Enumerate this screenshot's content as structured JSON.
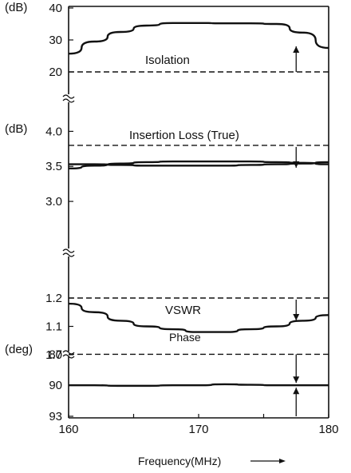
{
  "chart_data": {
    "type": "line",
    "xlabel": "Frequency(MHz)",
    "x_ticks": [
      "160",
      "170",
      "180"
    ],
    "xlim": [
      160,
      180
    ],
    "panels": [
      {
        "name": "isolation",
        "unit_label": "(dB)",
        "ylim": [
          20,
          40
        ],
        "y_ticks": [
          {
            "label": "40",
            "value": 40
          },
          {
            "label": "30",
            "value": 30
          },
          {
            "label": "20",
            "value": 20
          }
        ],
        "annotation": "Isolation",
        "spec": {
          "value": 20,
          "style": "dashed",
          "arrow": "up",
          "arrow_x": 177.5
        },
        "series": [
          {
            "x": [
              160,
              162,
              164,
              166,
              168,
              170,
              172,
              174,
              176,
              178,
              180
            ],
            "values": [
              25.7,
              29.5,
              32.5,
              34.5,
              35.3,
              35.3,
              35.2,
              35.2,
              35.0,
              32.3,
              27.5
            ]
          }
        ]
      },
      {
        "name": "insertion-loss",
        "unit_label": "(dB)",
        "ylim": [
          2.75,
          4.05
        ],
        "y_ticks": [
          {
            "label": "4.0",
            "value": 4.0
          },
          {
            "label": "3.5",
            "value": 3.5
          },
          {
            "label": "3.0",
            "value": 3.0
          }
        ],
        "annotation": "Insertion Loss (True)",
        "spec": {
          "value": 3.8,
          "style": "dashed",
          "arrow": "down",
          "arrow_x": 177.5
        },
        "series": [
          {
            "x": [
              160,
              162,
              164,
              166,
              168,
              170,
              172,
              174,
              176,
              178,
              180
            ],
            "values": [
              3.53,
              3.53,
              3.52,
              3.51,
              3.51,
              3.51,
              3.51,
              3.52,
              3.53,
              3.54,
              3.56
            ]
          },
          {
            "x": [
              160,
              162,
              164,
              166,
              168,
              170,
              172,
              174,
              176,
              178,
              180
            ],
            "values": [
              3.47,
              3.51,
              3.54,
              3.56,
              3.57,
              3.57,
              3.57,
              3.57,
              3.56,
              3.55,
              3.53
            ]
          }
        ]
      },
      {
        "name": "vswr",
        "unit_label": "",
        "ylim": [
          1.0,
          1.2
        ],
        "y_ticks": [
          {
            "label": "1.2",
            "value": 1.2
          },
          {
            "label": "1.1",
            "value": 1.1
          },
          {
            "label": "1.0",
            "value": 1.0
          }
        ],
        "annotation": "VSWR",
        "spec": {
          "value": 1.2,
          "style": "dashed",
          "arrow": "down",
          "arrow_x": 177.5
        },
        "series": [
          {
            "x": [
              160,
              162,
              164,
              166,
              168,
              170,
              172,
              174,
              176,
              178,
              180
            ],
            "values": [
              1.18,
              1.15,
              1.12,
              1.1,
              1.09,
              1.08,
              1.08,
              1.09,
              1.1,
              1.12,
              1.14
            ]
          }
        ]
      },
      {
        "name": "phase",
        "unit_label": "(deg)",
        "ylim": [
          86.5,
          93
        ],
        "y_reversed": true,
        "y_ticks": [
          {
            "label": "87",
            "value": 87
          },
          {
            "label": "90",
            "value": 90
          },
          {
            "label": "93",
            "value": 93
          }
        ],
        "annotation": "Phase",
        "spec": {
          "lines": [
            87,
            93
          ],
          "style": "dashed-top",
          "arrows": [
            {
              "dir": "down",
              "value_from": 87,
              "value_to": 90
            },
            {
              "dir": "up",
              "value_from": 93,
              "value_to": 90
            }
          ],
          "arrow_x": 177.5
        },
        "series": [
          {
            "x": [
              160,
              162,
              164,
              166,
              168,
              170,
              172,
              174,
              176,
              178,
              180
            ],
            "values": [
              90.0,
              90.0,
              90.05,
              90.05,
              90.0,
              90.0,
              89.9,
              89.95,
              90.0,
              90.0,
              90.0
            ]
          }
        ]
      }
    ]
  }
}
